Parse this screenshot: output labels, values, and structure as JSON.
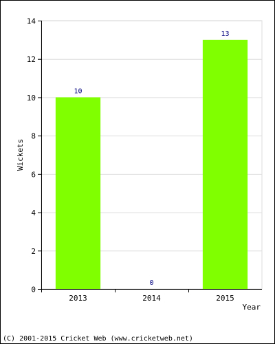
{
  "chart_data": {
    "type": "bar",
    "categories": [
      "2013",
      "2014",
      "2015"
    ],
    "values": [
      10,
      0,
      13
    ],
    "data_labels": [
      "10",
      "0",
      "13"
    ],
    "title": "",
    "xlabel": "Year",
    "ylabel": "Wickets",
    "ylim": [
      0,
      14
    ],
    "yticks": [
      0,
      2,
      4,
      6,
      8,
      10,
      12,
      14
    ],
    "grid": true,
    "legend": "none",
    "bar_color": "#80ff00",
    "data_label_color": "#000080"
  },
  "footer": {
    "copyright": "(C) 2001-2015 Cricket Web (www.cricketweb.net)"
  }
}
